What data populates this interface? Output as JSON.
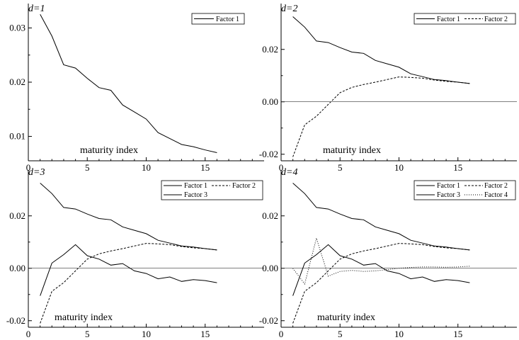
{
  "chart_data": [
    {
      "type": "line",
      "panel_label": "d=1",
      "xlabel": "maturity index",
      "xlim": [
        0,
        20
      ],
      "ylim": [
        0.0055,
        0.0345
      ],
      "xticks": [
        0,
        5,
        10,
        15
      ],
      "xtick_labels": [
        "0",
        "5",
        "10",
        "15"
      ],
      "yticks": [
        0.01,
        0.02,
        0.03
      ],
      "ytick_labels": [
        "0.01",
        "0.02",
        "0.03"
      ],
      "zero_line": false,
      "legend_position": "top-right",
      "x": [
        1,
        2,
        3,
        4,
        5,
        6,
        7,
        8,
        9,
        10,
        11,
        12,
        13,
        14,
        15,
        16
      ],
      "series": [
        {
          "name": "Factor 1",
          "style": "solid",
          "values": [
            0.0325,
            0.0285,
            0.0232,
            0.0226,
            0.0207,
            0.019,
            0.0185,
            0.0158,
            0.0145,
            0.0132,
            0.0107,
            0.0096,
            0.0085,
            0.0081,
            0.0075,
            0.007
          ]
        }
      ]
    },
    {
      "type": "line",
      "panel_label": "d=2",
      "xlabel": "maturity index",
      "xlim": [
        0,
        20
      ],
      "ylim": [
        -0.0225,
        0.0375
      ],
      "xticks": [
        0,
        5,
        10,
        15
      ],
      "xtick_labels": [
        "0",
        "5",
        "10",
        "15"
      ],
      "yticks": [
        -0.02,
        0,
        0.02
      ],
      "ytick_labels": [
        "-0.02",
        "0.00",
        "0.02"
      ],
      "zero_line": true,
      "legend_position": "top-right",
      "x": [
        1,
        2,
        3,
        4,
        5,
        6,
        7,
        8,
        9,
        10,
        11,
        12,
        13,
        14,
        15,
        16
      ],
      "series": [
        {
          "name": "Factor 1",
          "style": "solid",
          "values": [
            0.0325,
            0.0285,
            0.0232,
            0.0226,
            0.0207,
            0.019,
            0.0185,
            0.0158,
            0.0145,
            0.0132,
            0.0107,
            0.0096,
            0.0085,
            0.0081,
            0.0075,
            0.007
          ]
        },
        {
          "name": "Factor 2",
          "style": "dashed",
          "values": [
            -0.021,
            -0.0088,
            -0.0055,
            -0.001,
            0.0035,
            0.0055,
            0.0066,
            0.0075,
            0.0085,
            0.0095,
            0.0093,
            0.009,
            0.0083,
            0.0078,
            0.0075,
            0.007
          ]
        }
      ]
    },
    {
      "type": "line",
      "panel_label": "d=3",
      "xlabel": "maturity index",
      "xlim": [
        0,
        20
      ],
      "ylim": [
        -0.0225,
        0.0375
      ],
      "xticks": [
        0,
        5,
        10,
        15
      ],
      "xtick_labels": [
        "0",
        "5",
        "10",
        "15"
      ],
      "yticks": [
        -0.02,
        0,
        0.02
      ],
      "ytick_labels": [
        "-0.02",
        "0.00",
        "0.02"
      ],
      "zero_line": true,
      "legend_position": "top-right",
      "x": [
        1,
        2,
        3,
        4,
        5,
        6,
        7,
        8,
        9,
        10,
        11,
        12,
        13,
        14,
        15,
        16
      ],
      "series": [
        {
          "name": "Factor 1",
          "style": "solid",
          "values": [
            0.0325,
            0.0285,
            0.0232,
            0.0226,
            0.0207,
            0.019,
            0.0185,
            0.0158,
            0.0145,
            0.0132,
            0.0107,
            0.0096,
            0.0085,
            0.0081,
            0.0075,
            0.007
          ]
        },
        {
          "name": "Factor 2",
          "style": "dashed",
          "values": [
            -0.021,
            -0.0088,
            -0.0055,
            -0.001,
            0.0035,
            0.0055,
            0.0066,
            0.0075,
            0.0085,
            0.0095,
            0.0093,
            0.009,
            0.0083,
            0.0078,
            0.0075,
            0.007
          ]
        },
        {
          "name": "Factor 3",
          "style": "solid",
          "values": [
            -0.0105,
            0.002,
            0.0052,
            0.009,
            0.0048,
            0.0035,
            0.0012,
            0.0018,
            -0.001,
            -0.002,
            -0.004,
            -0.0033,
            -0.005,
            -0.0043,
            -0.0047,
            -0.0055
          ]
        }
      ]
    },
    {
      "type": "line",
      "panel_label": "d=4",
      "xlabel": "maturity index",
      "xlim": [
        0,
        20
      ],
      "ylim": [
        -0.0225,
        0.0375
      ],
      "xticks": [
        0,
        5,
        10,
        15
      ],
      "xtick_labels": [
        "0",
        "5",
        "10",
        "15"
      ],
      "yticks": [
        -0.02,
        0,
        0.02
      ],
      "ytick_labels": [
        "-0.02",
        "0.00",
        "0.02"
      ],
      "zero_line": true,
      "legend_position": "top-right",
      "x": [
        1,
        2,
        3,
        4,
        5,
        6,
        7,
        8,
        9,
        10,
        11,
        12,
        13,
        14,
        15,
        16
      ],
      "series": [
        {
          "name": "Factor 1",
          "style": "solid",
          "values": [
            0.0325,
            0.0285,
            0.0232,
            0.0226,
            0.0207,
            0.019,
            0.0185,
            0.0158,
            0.0145,
            0.0132,
            0.0107,
            0.0096,
            0.0085,
            0.0081,
            0.0075,
            0.007
          ]
        },
        {
          "name": "Factor 2",
          "style": "dashed",
          "values": [
            -0.021,
            -0.0088,
            -0.0055,
            -0.001,
            0.0035,
            0.0055,
            0.0066,
            0.0075,
            0.0085,
            0.0095,
            0.0093,
            0.009,
            0.0083,
            0.0078,
            0.0075,
            0.007
          ]
        },
        {
          "name": "Factor 3",
          "style": "solid",
          "values": [
            -0.0105,
            0.002,
            0.0052,
            0.009,
            0.0048,
            0.0035,
            0.0012,
            0.0018,
            -0.001,
            -0.002,
            -0.004,
            -0.0033,
            -0.005,
            -0.0043,
            -0.0047,
            -0.0055
          ]
        },
        {
          "name": "Factor 4",
          "style": "dotted",
          "values": [
            0.0,
            -0.006,
            0.0115,
            -0.003,
            -0.0012,
            -0.0008,
            -0.0012,
            -0.001,
            -0.0005,
            0.0,
            0.0003,
            0.0005,
            0.0005,
            0.0004,
            0.0005,
            0.0008
          ]
        }
      ]
    }
  ]
}
